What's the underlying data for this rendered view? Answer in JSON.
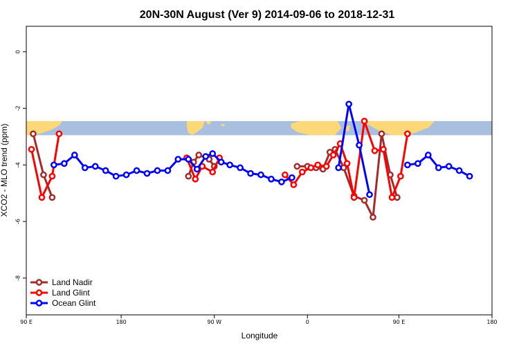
{
  "chart_data": {
    "type": "line",
    "title": "20N-30N August (Ver 9)   2014-09-06 to 2018-12-31",
    "xlabel": "Longitude",
    "ylabel": "XCO2 - MLO trend (ppm)",
    "xlim": [
      -90,
      180
    ],
    "ylim": [
      -9.3,
      0.9
    ],
    "x_ticks": [
      {
        "value": -90,
        "label": "90 E"
      },
      {
        "value": -35,
        "label": "180"
      },
      {
        "value": 19,
        "label": "90 W"
      },
      {
        "value": 73,
        "label": "0"
      },
      {
        "value": 126,
        "label": "90 E"
      },
      {
        "value": 180,
        "label": "180"
      }
    ],
    "y_ticks": [
      0,
      -2,
      -4,
      -6,
      -8
    ],
    "land_band": {
      "y_range": [
        -2.95,
        -2.45
      ]
    },
    "grid": false,
    "legend_position": "bottom-left",
    "series": [
      {
        "name": "Land Nadir",
        "color": "#a52a2a",
        "segments": [
          [
            [
              -86,
              -2.9
            ],
            [
              -80,
              -4.35
            ],
            [
              -75,
              -5.15
            ]
          ],
          [
            [
              4,
              -4.4
            ],
            [
              7,
              -3.9
            ],
            [
              10,
              -3.65
            ],
            [
              16,
              -3.8
            ],
            [
              19,
              -4.05
            ]
          ],
          [
            [
              67,
              -4.05
            ],
            [
              73,
              -4.05
            ],
            [
              78,
              -4.1
            ],
            [
              82,
              -4.15
            ],
            [
              86,
              -3.55
            ],
            [
              89,
              -3.45
            ],
            [
              94,
              -4.1
            ],
            [
              100,
              -5.1
            ],
            [
              106,
              -5.25
            ],
            [
              111,
              -5.85
            ],
            [
              116,
              -2.9
            ],
            [
              121,
              -4.35
            ],
            [
              125,
              -5.15
            ]
          ]
        ]
      },
      {
        "name": "Land Glint",
        "color": "#ff0000",
        "segments": [
          [
            [
              -87,
              -3.45
            ],
            [
              -81,
              -5.15
            ],
            [
              -75,
              -4.4
            ],
            [
              -71,
              -2.9
            ]
          ],
          [
            [
              3,
              -3.75
            ],
            [
              8,
              -4.5
            ],
            [
              12,
              -4.05
            ],
            [
              18,
              -4.25
            ],
            [
              22,
              -3.75
            ]
          ],
          [
            [
              60,
              -4.35
            ],
            [
              65,
              -4.7
            ],
            [
              70,
              -4.25
            ],
            [
              75,
              -4.1
            ],
            [
              79,
              -4.0
            ],
            [
              84,
              -4.05
            ],
            [
              88,
              -3.65
            ],
            [
              92,
              -3.25
            ],
            [
              96,
              -3.95
            ],
            [
              100,
              -5.15
            ],
            [
              106,
              -2.45
            ],
            [
              112,
              -3.5
            ],
            [
              117,
              -3.45
            ],
            [
              122,
              -5.15
            ],
            [
              127,
              -4.4
            ],
            [
              131,
              -2.9
            ]
          ]
        ]
      },
      {
        "name": "Ocean Glint",
        "color": "#0000ff",
        "segments": [
          [
            [
              -74,
              -4.0
            ],
            [
              -68,
              -3.95
            ],
            [
              -62,
              -3.65
            ],
            [
              -56,
              -4.1
            ],
            [
              -50,
              -4.05
            ],
            [
              -44,
              -4.2
            ],
            [
              -38,
              -4.4
            ],
            [
              -32,
              -4.35
            ],
            [
              -26,
              -4.2
            ],
            [
              -20,
              -4.3
            ],
            [
              -14,
              -4.2
            ],
            [
              -8,
              -4.2
            ],
            [
              -2,
              -3.8
            ],
            [
              4,
              -3.8
            ],
            [
              9,
              -4.15
            ],
            [
              14,
              -3.7
            ],
            [
              18,
              -3.6
            ],
            [
              23,
              -3.9
            ],
            [
              28,
              -4.0
            ],
            [
              34,
              -4.1
            ],
            [
              40,
              -4.3
            ],
            [
              46,
              -4.35
            ],
            [
              52,
              -4.5
            ],
            [
              58,
              -4.6
            ],
            [
              64,
              -4.45
            ]
          ],
          [
            [
              91,
              -4.1
            ],
            [
              97,
              -1.85
            ],
            [
              103,
              -3.3
            ],
            [
              109,
              -5.05
            ]
          ],
          [
            [
              131,
              -4.0
            ],
            [
              137,
              -3.95
            ],
            [
              143,
              -3.65
            ],
            [
              149,
              -4.1
            ],
            [
              155,
              -4.05
            ],
            [
              161,
              -4.2
            ],
            [
              167,
              -4.4
            ]
          ]
        ]
      }
    ]
  }
}
